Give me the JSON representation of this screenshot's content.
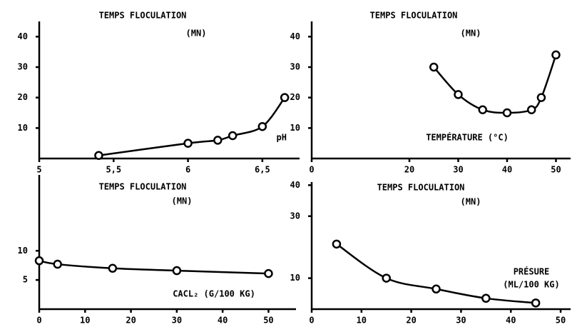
{
  "chart_data": [
    {
      "type": "line",
      "title": "TEMPS FLOCULATION",
      "y_unit": "(MN)",
      "xlabel": "pH",
      "x": [
        5.4,
        6.0,
        6.2,
        6.3,
        6.5,
        6.65
      ],
      "values": [
        1,
        5,
        6,
        7.5,
        10.5,
        20
      ],
      "color": "#000000",
      "xlim": [
        5,
        6.75
      ],
      "xticks": [
        5,
        {
          "value": 5.5,
          "label": "5,5"
        },
        6,
        {
          "value": 6.5,
          "label": "6,5"
        }
      ],
      "ylim": [
        0,
        45
      ],
      "yticks": [
        10,
        20,
        30,
        40
      ]
    },
    {
      "type": "line",
      "title": "TEMPS FLOCULATION",
      "y_unit": "(MN)",
      "xlabel": "TEMPÉRATURE (°C)",
      "x": [
        25,
        30,
        35,
        40,
        45,
        47,
        50
      ],
      "values": [
        30,
        21,
        16,
        15,
        16,
        20,
        34
      ],
      "color": "#000000",
      "xlim": [
        0,
        53
      ],
      "xticks": [
        0,
        20,
        30,
        40,
        50
      ],
      "ylim": [
        0,
        45
      ],
      "yticks": [
        10,
        20,
        30,
        40
      ]
    },
    {
      "type": "line",
      "title": "TEMPS FLOCULATION",
      "y_unit": "(MN)",
      "xlabel": "CACL₂ (G/100 KG)",
      "x": [
        0,
        4,
        16,
        30,
        50
      ],
      "values": [
        8.3,
        7.7,
        7.0,
        6.6,
        6.1
      ],
      "color": "#000000",
      "xlim": [
        0,
        56
      ],
      "xticks": [
        0,
        10,
        20,
        30,
        40,
        50
      ],
      "ylim": [
        0,
        23
      ],
      "yticks": [
        5,
        10
      ]
    },
    {
      "type": "line",
      "title": "TEMPS FLOCULATION",
      "y_unit": "(MN)",
      "xlabel": [
        "PRÉSURE",
        "(ML/100 KG)"
      ],
      "x": [
        5,
        15,
        25,
        35,
        45
      ],
      "values": [
        21,
        10,
        6.5,
        3.5,
        2
      ],
      "color": "#000000",
      "xlim": [
        0,
        52
      ],
      "xticks": [
        0,
        10,
        20,
        30,
        40,
        50
      ],
      "ylim": [
        0,
        41
      ],
      "yticks": [
        10,
        30,
        40
      ]
    }
  ]
}
